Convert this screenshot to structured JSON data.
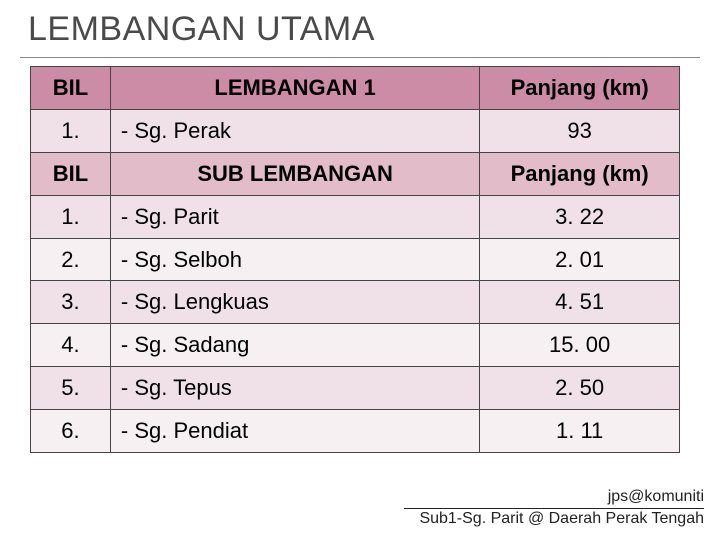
{
  "title": "LEMBANGAN UTAMA",
  "table1": {
    "columns": [
      "BIL",
      "LEMBANGAN 1",
      "Panjang (km)"
    ],
    "rows": [
      {
        "bil": "1.",
        "name": "- Sg. Perak",
        "len": "93"
      }
    ]
  },
  "table2": {
    "columns": [
      "BIL",
      "SUB LEMBANGAN",
      "Panjang (km)"
    ],
    "rows": [
      {
        "bil": "1.",
        "name": "- Sg. Parit",
        "len": "3. 22"
      },
      {
        "bil": "2.",
        "name": "- Sg. Selboh",
        "len": "2. 01"
      },
      {
        "bil": "3.",
        "name": "- Sg. Lengkuas",
        "len": "4. 51"
      },
      {
        "bil": "4.",
        "name": "- Sg. Sadang",
        "len": "15. 00"
      },
      {
        "bil": "5.",
        "name": "- Sg. Tepus",
        "len": "2. 50"
      },
      {
        "bil": "6.",
        "name": "- Sg. Pendiat",
        "len": "1. 11"
      }
    ]
  },
  "footer": {
    "line1": "jps@komuniti",
    "line2": "Sub1-Sg. Parit @ Daerah Perak Tengah"
  },
  "style": {
    "header_bg": "#cd8ca6",
    "subheader_bg": "#e3bcc9",
    "row_a_bg": "#efe1e7",
    "row_b_bg": "#f7f0f3",
    "title_color": "#4a4a4a",
    "border_color": "#444444",
    "title_fontsize": 34,
    "cell_fontsize": 22,
    "footer_fontsize": 16
  }
}
